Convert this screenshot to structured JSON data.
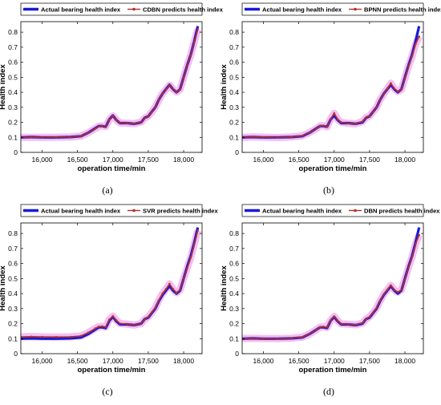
{
  "figure": {
    "captions": [
      "(a)",
      "(b)",
      "(c)",
      "(d)"
    ]
  },
  "colors": {
    "actual": "#1a1ad6",
    "predicted": "#b5302a",
    "halo": "#f2a8ec"
  },
  "chart_data": [
    {
      "type": "line",
      "title": "",
      "xlabel": "operation time/min",
      "ylabel": "Health index",
      "xlim": [
        15700,
        18260
      ],
      "ylim": [
        0,
        0.87
      ],
      "xticks": [
        16000,
        16500,
        17000,
        17500,
        18000
      ],
      "xtick_labels": [
        "16,000",
        "16,500",
        "17,000",
        "17,500",
        "18,000"
      ],
      "yticks": [
        0,
        0.1,
        0.2,
        0.3,
        0.4,
        0.5,
        0.6,
        0.7,
        0.8
      ],
      "ytick_labels": [
        "0",
        "0.1",
        "0.2",
        "0.3",
        "0.4",
        "0.5",
        "0.6",
        "0.7",
        "0.8"
      ],
      "grid": false,
      "legend_position": "top",
      "series": [
        {
          "name": "Actual bearing health index",
          "x": [
            15700,
            15850,
            16000,
            16200,
            16400,
            16550,
            16650,
            16750,
            16800,
            16850,
            16900,
            16950,
            17000,
            17050,
            17100,
            17200,
            17300,
            17400,
            17450,
            17500,
            17550,
            17600,
            17650,
            17700,
            17750,
            17800,
            17850,
            17900,
            17950,
            18000,
            18050,
            18100,
            18150,
            18200
          ],
          "y": [
            0.1,
            0.102,
            0.1,
            0.1,
            0.102,
            0.108,
            0.13,
            0.16,
            0.175,
            0.175,
            0.17,
            0.22,
            0.245,
            0.215,
            0.195,
            0.195,
            0.19,
            0.2,
            0.23,
            0.24,
            0.27,
            0.3,
            0.35,
            0.39,
            0.42,
            0.45,
            0.42,
            0.4,
            0.42,
            0.5,
            0.58,
            0.65,
            0.74,
            0.84
          ]
        },
        {
          "name": "CDBN predicts health index",
          "x": [
            15700,
            15850,
            16000,
            16200,
            16400,
            16550,
            16650,
            16750,
            16800,
            16850,
            16900,
            16950,
            17000,
            17050,
            17100,
            17200,
            17300,
            17400,
            17450,
            17500,
            17550,
            17600,
            17650,
            17700,
            17750,
            17800,
            17850,
            17900,
            17950,
            18000,
            18050,
            18100,
            18150,
            18200
          ],
          "y": [
            0.1,
            0.101,
            0.1,
            0.101,
            0.102,
            0.109,
            0.13,
            0.158,
            0.173,
            0.176,
            0.172,
            0.218,
            0.243,
            0.216,
            0.196,
            0.194,
            0.191,
            0.202,
            0.228,
            0.241,
            0.268,
            0.302,
            0.348,
            0.391,
            0.418,
            0.448,
            0.421,
            0.402,
            0.418,
            0.498,
            0.578,
            0.648,
            0.735,
            0.82
          ]
        }
      ]
    },
    {
      "type": "line",
      "title": "",
      "xlabel": "operation time/min",
      "ylabel": "Health index",
      "xlim": [
        15700,
        18260
      ],
      "ylim": [
        0,
        0.87
      ],
      "xticks": [
        16000,
        16500,
        17000,
        17500,
        18000
      ],
      "xtick_labels": [
        "16,000",
        "16,500",
        "17,000",
        "17,500",
        "18,000"
      ],
      "yticks": [
        0,
        0.1,
        0.2,
        0.3,
        0.4,
        0.5,
        0.6,
        0.7,
        0.8
      ],
      "ytick_labels": [
        "0",
        "0.1",
        "0.2",
        "0.3",
        "0.4",
        "0.5",
        "0.6",
        "0.7",
        "0.8"
      ],
      "grid": false,
      "legend_position": "top",
      "series": [
        {
          "name": "Actual bearing health index",
          "x": [
            15700,
            15850,
            16000,
            16200,
            16400,
            16550,
            16650,
            16750,
            16800,
            16850,
            16900,
            16950,
            17000,
            17050,
            17100,
            17200,
            17300,
            17400,
            17450,
            17500,
            17550,
            17600,
            17650,
            17700,
            17750,
            17800,
            17850,
            17900,
            17950,
            18000,
            18050,
            18100,
            18150,
            18200
          ],
          "y": [
            0.1,
            0.102,
            0.1,
            0.1,
            0.102,
            0.108,
            0.13,
            0.16,
            0.175,
            0.175,
            0.17,
            0.22,
            0.245,
            0.215,
            0.195,
            0.195,
            0.19,
            0.2,
            0.23,
            0.24,
            0.27,
            0.3,
            0.35,
            0.39,
            0.42,
            0.45,
            0.42,
            0.4,
            0.42,
            0.5,
            0.58,
            0.65,
            0.74,
            0.84
          ]
        },
        {
          "name": "BPNN predicts health index",
          "x": [
            15700,
            15850,
            16000,
            16200,
            16400,
            16550,
            16650,
            16750,
            16800,
            16850,
            16900,
            16950,
            17000,
            17050,
            17100,
            17200,
            17300,
            17400,
            17450,
            17500,
            17550,
            17600,
            17650,
            17700,
            17750,
            17800,
            17850,
            17900,
            17950,
            18000,
            18050,
            18100,
            18150,
            18200
          ],
          "y": [
            0.1,
            0.103,
            0.101,
            0.099,
            0.103,
            0.11,
            0.132,
            0.158,
            0.176,
            0.178,
            0.17,
            0.222,
            0.26,
            0.22,
            0.2,
            0.193,
            0.19,
            0.205,
            0.232,
            0.242,
            0.27,
            0.3,
            0.352,
            0.388,
            0.423,
            0.46,
            0.425,
            0.405,
            0.418,
            0.495,
            0.575,
            0.64,
            0.72,
            0.77
          ]
        }
      ]
    },
    {
      "type": "line",
      "title": "",
      "xlabel": "operation time/min",
      "ylabel": "Health index",
      "xlim": [
        15700,
        18260
      ],
      "ylim": [
        0,
        0.87
      ],
      "xticks": [
        16000,
        16500,
        17000,
        17500,
        18000
      ],
      "xtick_labels": [
        "16,000",
        "16,500",
        "17,000",
        "17,500",
        "18,000"
      ],
      "yticks": [
        0,
        0.1,
        0.2,
        0.3,
        0.4,
        0.5,
        0.6,
        0.7,
        0.8
      ],
      "ytick_labels": [
        "0",
        "0.1",
        "0.2",
        "0.3",
        "0.4",
        "0.5",
        "0.6",
        "0.7",
        "0.8"
      ],
      "grid": false,
      "legend_position": "top",
      "series": [
        {
          "name": "Actual bearing health index",
          "x": [
            15700,
            15850,
            16000,
            16200,
            16400,
            16550,
            16650,
            16750,
            16800,
            16850,
            16900,
            16950,
            17000,
            17050,
            17100,
            17200,
            17300,
            17400,
            17450,
            17500,
            17550,
            17600,
            17650,
            17700,
            17750,
            17800,
            17850,
            17900,
            17950,
            18000,
            18050,
            18100,
            18150,
            18200
          ],
          "y": [
            0.1,
            0.102,
            0.1,
            0.1,
            0.102,
            0.108,
            0.13,
            0.16,
            0.175,
            0.175,
            0.17,
            0.22,
            0.245,
            0.215,
            0.195,
            0.195,
            0.19,
            0.2,
            0.23,
            0.24,
            0.27,
            0.3,
            0.35,
            0.39,
            0.42,
            0.45,
            0.42,
            0.4,
            0.42,
            0.5,
            0.58,
            0.65,
            0.74,
            0.84
          ]
        },
        {
          "name": "SVR predicts health index",
          "x": [
            15700,
            15850,
            16000,
            16200,
            16400,
            16550,
            16650,
            16750,
            16800,
            16850,
            16900,
            16950,
            17000,
            17050,
            17100,
            17200,
            17300,
            17400,
            17450,
            17500,
            17550,
            17600,
            17650,
            17700,
            17750,
            17800,
            17850,
            17900,
            17950,
            18000,
            18050,
            18100,
            18150,
            18200
          ],
          "y": [
            0.112,
            0.113,
            0.112,
            0.111,
            0.112,
            0.118,
            0.14,
            0.168,
            0.18,
            0.182,
            0.178,
            0.228,
            0.25,
            0.222,
            0.2,
            0.197,
            0.19,
            0.2,
            0.228,
            0.245,
            0.275,
            0.305,
            0.355,
            0.4,
            0.43,
            0.465,
            0.43,
            0.405,
            0.425,
            0.5,
            0.57,
            0.64,
            0.73,
            0.82
          ]
        }
      ]
    },
    {
      "type": "line",
      "title": "",
      "xlabel": "operation time/min",
      "ylabel": "Health index",
      "xlim": [
        15700,
        18260
      ],
      "ylim": [
        0,
        0.87
      ],
      "xticks": [
        16000,
        16500,
        17000,
        17500,
        18000
      ],
      "xtick_labels": [
        "16,000",
        "16,500",
        "17,000",
        "17,500",
        "18,000"
      ],
      "yticks": [
        0,
        0.1,
        0.2,
        0.3,
        0.4,
        0.5,
        0.6,
        0.7,
        0.8
      ],
      "ytick_labels": [
        "0",
        "0.1",
        "0.2",
        "0.3",
        "0.4",
        "0.5",
        "0.6",
        "0.7",
        "0.8"
      ],
      "grid": false,
      "legend_position": "top",
      "series": [
        {
          "name": "Actual bearing health index",
          "x": [
            15700,
            15850,
            16000,
            16200,
            16400,
            16550,
            16650,
            16750,
            16800,
            16850,
            16900,
            16950,
            17000,
            17050,
            17100,
            17200,
            17300,
            17400,
            17450,
            17500,
            17550,
            17600,
            17650,
            17700,
            17750,
            17800,
            17850,
            17900,
            17950,
            18000,
            18050,
            18100,
            18150,
            18200
          ],
          "y": [
            0.1,
            0.102,
            0.1,
            0.1,
            0.102,
            0.108,
            0.13,
            0.16,
            0.175,
            0.175,
            0.17,
            0.22,
            0.245,
            0.215,
            0.195,
            0.195,
            0.19,
            0.2,
            0.23,
            0.24,
            0.27,
            0.3,
            0.35,
            0.39,
            0.42,
            0.45,
            0.42,
            0.4,
            0.42,
            0.5,
            0.58,
            0.65,
            0.74,
            0.84
          ]
        },
        {
          "name": "DBN predicts health index",
          "x": [
            15700,
            15850,
            16000,
            16200,
            16400,
            16550,
            16650,
            16750,
            16800,
            16850,
            16900,
            16950,
            17000,
            17050,
            17100,
            17200,
            17300,
            17400,
            17450,
            17500,
            17550,
            17600,
            17650,
            17700,
            17750,
            17800,
            17850,
            17900,
            17950,
            18000,
            18050,
            18100,
            18150,
            18200
          ],
          "y": [
            0.101,
            0.102,
            0.101,
            0.1,
            0.103,
            0.11,
            0.131,
            0.16,
            0.176,
            0.18,
            0.174,
            0.222,
            0.248,
            0.218,
            0.198,
            0.196,
            0.192,
            0.203,
            0.23,
            0.245,
            0.272,
            0.305,
            0.352,
            0.395,
            0.425,
            0.455,
            0.425,
            0.41,
            0.425,
            0.495,
            0.575,
            0.645,
            0.73,
            0.79
          ]
        }
      ]
    }
  ]
}
